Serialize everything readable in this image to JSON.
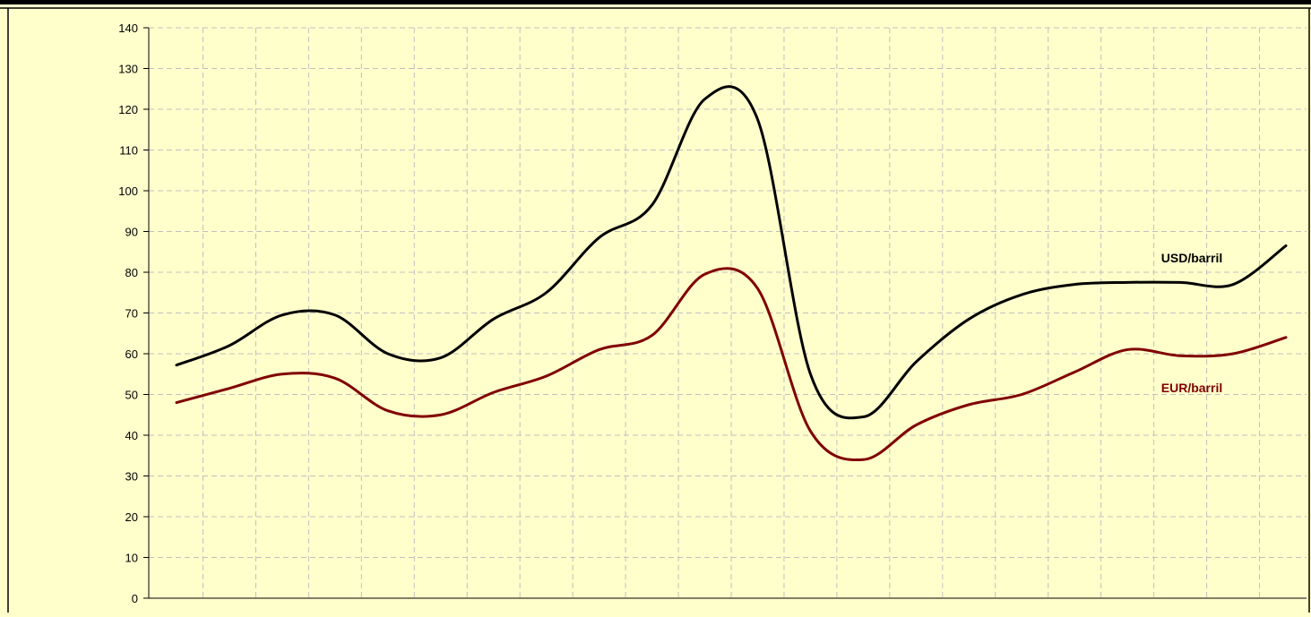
{
  "chart_data": {
    "type": "line",
    "title": "",
    "xlabel": "",
    "ylabel": "",
    "ylim": [
      0,
      140
    ],
    "yticks": [
      0,
      10,
      20,
      30,
      40,
      50,
      60,
      70,
      80,
      90,
      100,
      110,
      120,
      130,
      140
    ],
    "grid": true,
    "x": [
      1,
      2,
      3,
      4,
      5,
      6,
      7,
      8,
      9,
      10,
      11,
      12,
      13,
      14,
      15,
      16,
      17,
      18,
      19,
      20,
      21,
      22
    ],
    "series": [
      {
        "name": "USD/barril",
        "color": "#000000",
        "values": [
          57.2,
          62.0,
          69.5,
          69.5,
          60.0,
          59.0,
          68.5,
          75.0,
          88.5,
          96.5,
          122.5,
          117.5,
          55.0,
          44.5,
          58.0,
          68.5,
          74.5,
          77.0,
          77.5,
          77.5,
          77.0,
          86.5
        ]
      },
      {
        "name": "EUR/barril",
        "color": "#800000",
        "values": [
          48.0,
          51.5,
          55.0,
          54.0,
          46.0,
          45.0,
          50.5,
          54.5,
          61.0,
          64.5,
          79.5,
          76.0,
          41.0,
          34.0,
          42.5,
          47.5,
          50.0,
          55.5,
          61.0,
          59.5,
          60.0,
          64.0
        ]
      }
    ],
    "legend": "inline-right"
  },
  "colors": {
    "plot_background": "#ffffcc",
    "grid": "#c0c0c0",
    "frame_top_bar": "#000000"
  }
}
